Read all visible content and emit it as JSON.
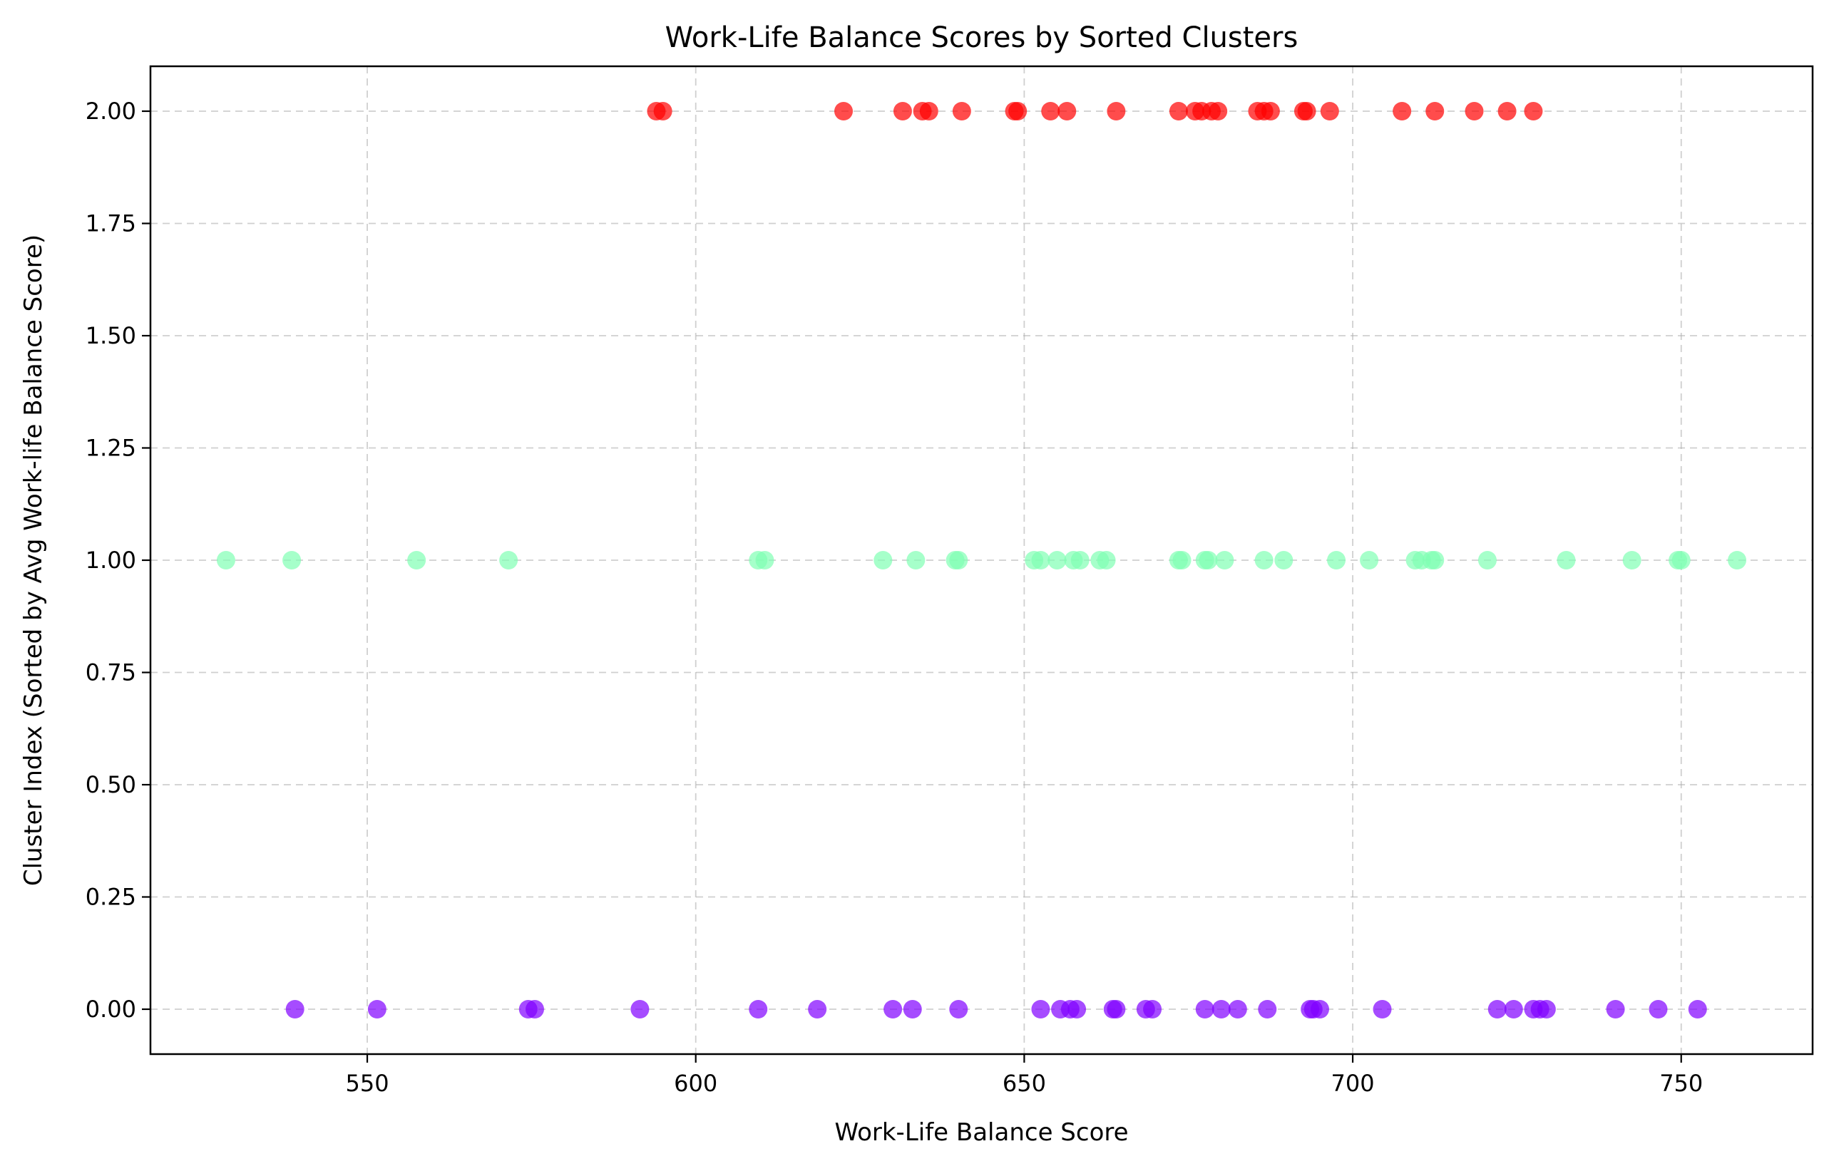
{
  "chart_data": {
    "type": "scatter",
    "title": "Work-Life Balance Scores by Sorted Clusters",
    "xlabel": "Work-Life Balance Score",
    "ylabel": "Cluster Index (Sorted by Avg Work-life Balance Score)",
    "xlim": [
      517,
      770
    ],
    "ylim": [
      -0.1,
      2.1
    ],
    "x_ticks": [
      {
        "value": 550,
        "label": "550"
      },
      {
        "value": 600,
        "label": "600"
      },
      {
        "value": 650,
        "label": "650"
      },
      {
        "value": 700,
        "label": "700"
      },
      {
        "value": 750,
        "label": "750"
      }
    ],
    "y_ticks": [
      {
        "value": 0,
        "label": "0.00"
      },
      {
        "value": 0.25,
        "label": "0.25"
      },
      {
        "value": 0.5,
        "label": "0.50"
      },
      {
        "value": 0.75,
        "label": "0.75"
      },
      {
        "value": 1.0,
        "label": "1.00"
      },
      {
        "value": 1.25,
        "label": "1.25"
      },
      {
        "value": 1.5,
        "label": "1.50"
      },
      {
        "value": 1.75,
        "label": "1.75"
      },
      {
        "value": 2.0,
        "label": "2.00"
      }
    ],
    "grid": true,
    "grid_style": "dashed",
    "legend": "none",
    "series": [
      {
        "y": 0,
        "color": "#8000ff",
        "x": [
          539,
          551.5,
          574.5,
          575.5,
          591.5,
          609.5,
          618.5,
          630,
          633,
          640,
          652.5,
          655.5,
          657,
          658,
          663.5,
          664,
          668.5,
          669.5,
          677.5,
          680,
          682.5,
          687,
          693.5,
          694,
          695,
          704.5,
          722,
          724.5,
          727.5,
          728.5,
          729.5,
          740,
          746.5,
          752.5
        ]
      },
      {
        "y": 1,
        "color": "#80ffb4",
        "x": [
          528.5,
          538.5,
          557.5,
          571.5,
          609.5,
          610.5,
          628.5,
          633.5,
          639.5,
          640,
          651.5,
          652.5,
          655,
          657.5,
          658.5,
          661.5,
          662.5,
          673.5,
          674,
          677.5,
          678,
          680.5,
          686.5,
          689.5,
          697.5,
          702.5,
          709.5,
          710.5,
          712,
          712.5,
          720.5,
          732.5,
          742.5,
          749.5,
          750,
          758.5
        ]
      },
      {
        "y": 2,
        "color": "#ff0000",
        "x": [
          594,
          595,
          622.5,
          631.5,
          634.5,
          635.5,
          640.5,
          648.5,
          649,
          654,
          656.5,
          664,
          673.5,
          676,
          677,
          678.5,
          679.5,
          685.5,
          686.5,
          687.5,
          692.5,
          693,
          696.5,
          707.5,
          712.5,
          718.5,
          723.5,
          727.5
        ]
      }
    ]
  }
}
